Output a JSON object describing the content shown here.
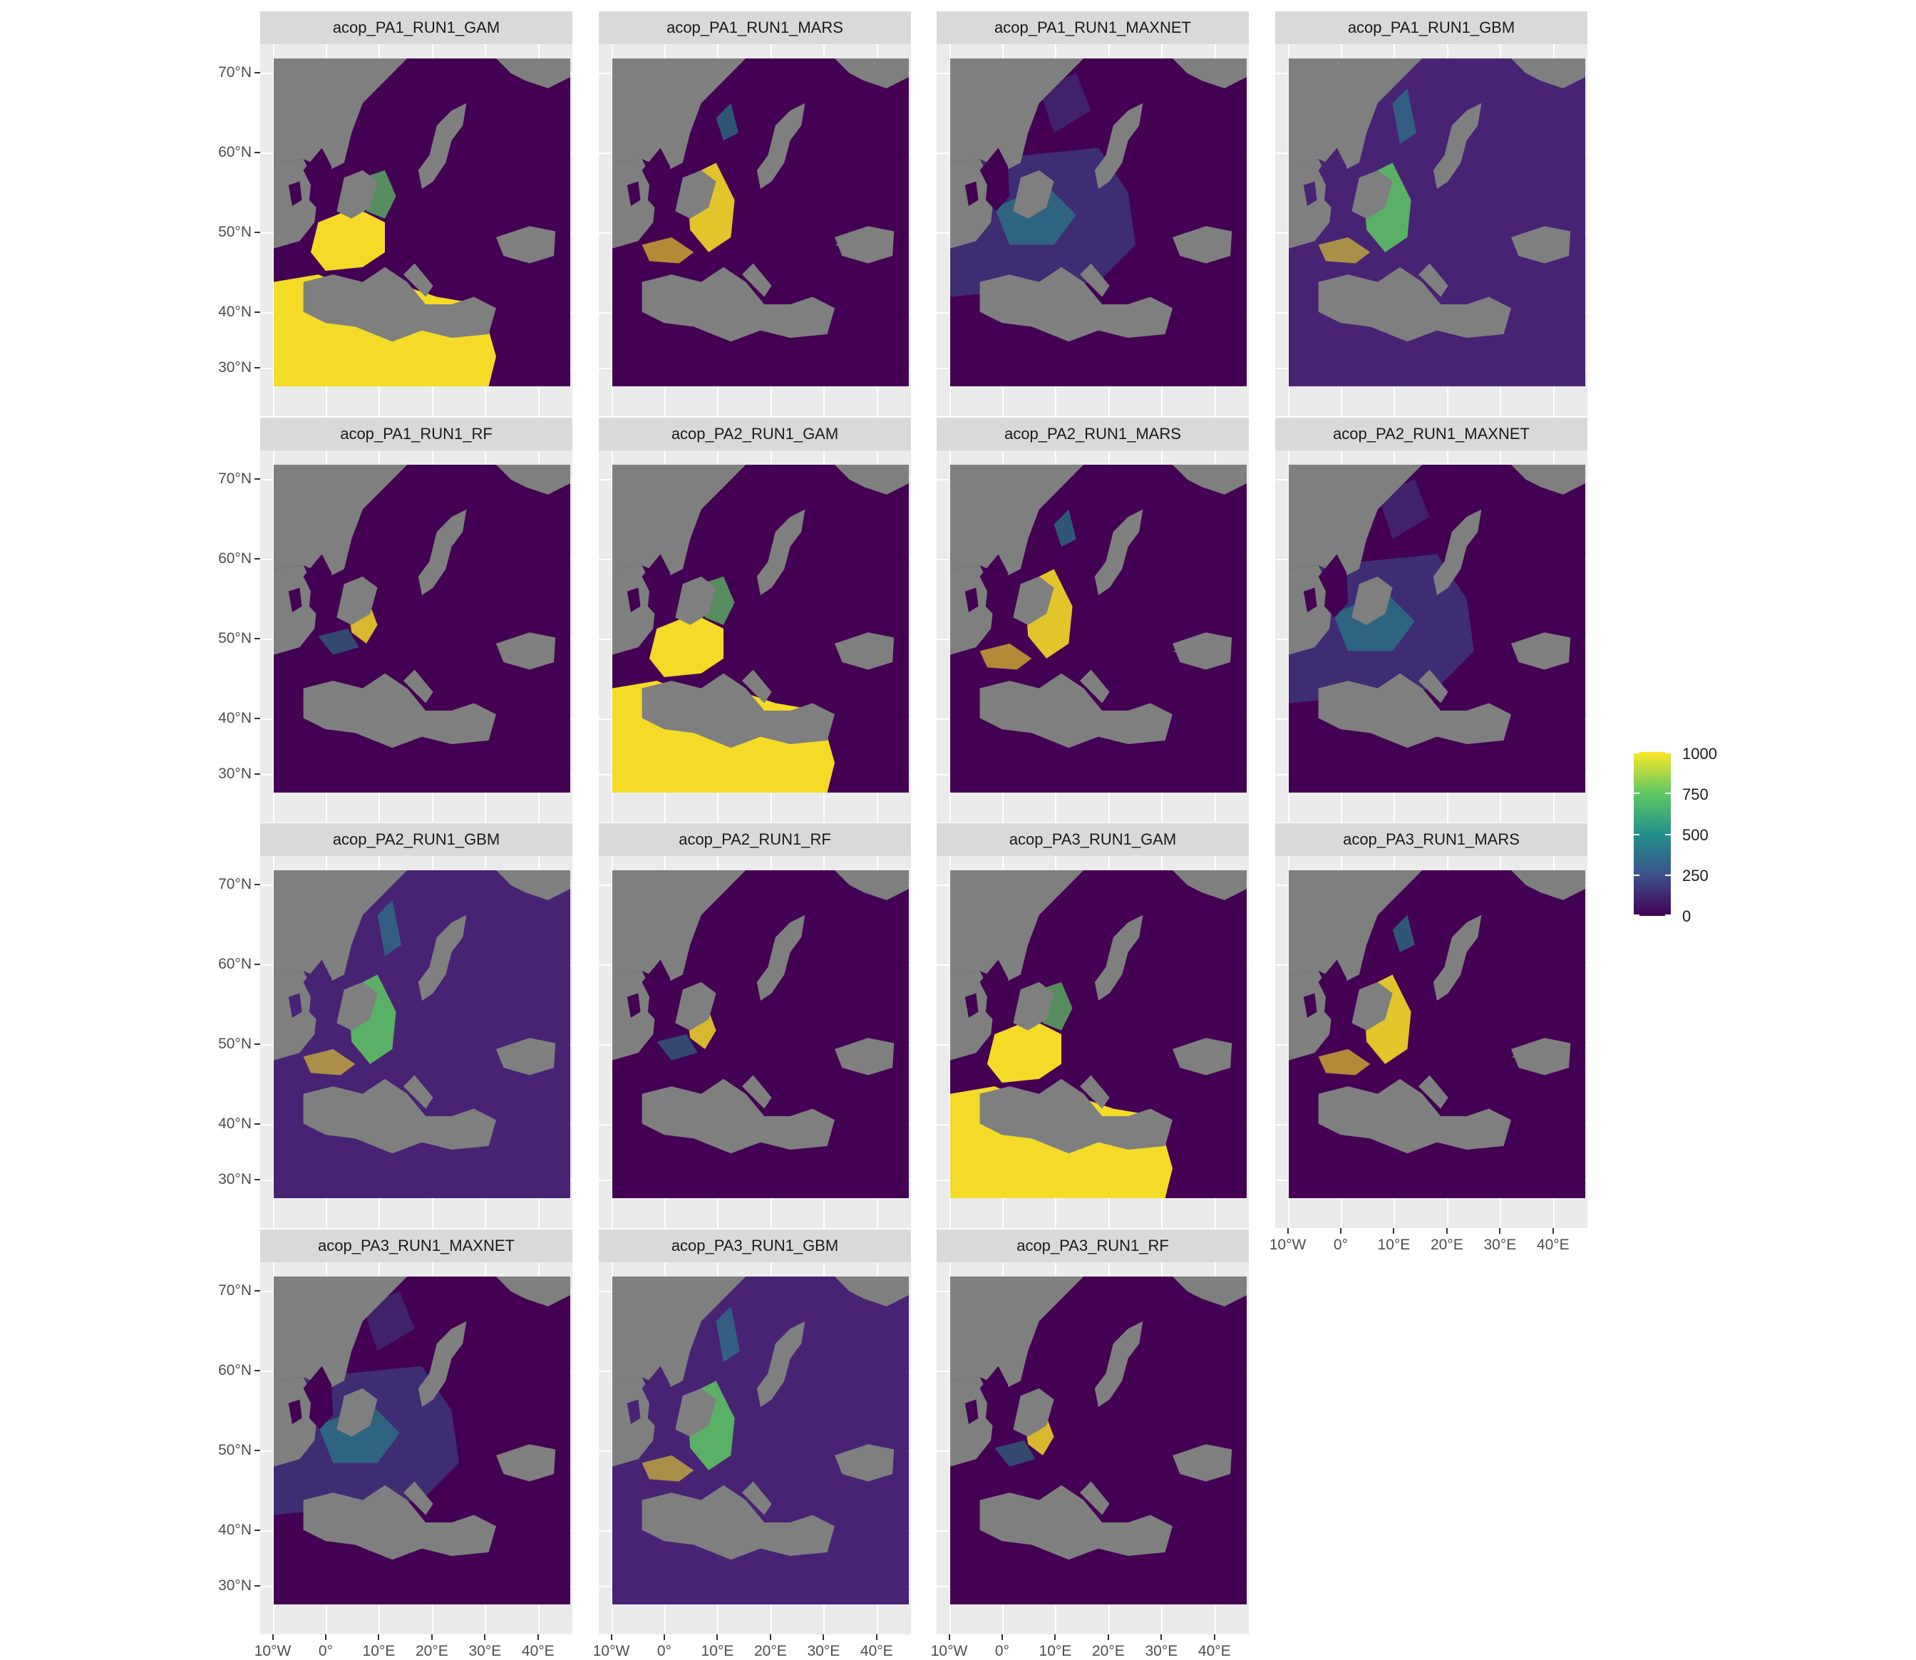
{
  "panels": [
    {
      "title": "acop_PA1_RUN1_GAM",
      "pattern": "gam"
    },
    {
      "title": "acop_PA1_RUN1_MARS",
      "pattern": "mars"
    },
    {
      "title": "acop_PA1_RUN1_MAXNET",
      "pattern": "maxnet"
    },
    {
      "title": "acop_PA1_RUN1_GBM",
      "pattern": "gbm"
    },
    {
      "title": "acop_PA1_RUN1_RF",
      "pattern": "rf"
    },
    {
      "title": "acop_PA2_RUN1_GAM",
      "pattern": "gam"
    },
    {
      "title": "acop_PA2_RUN1_MARS",
      "pattern": "mars"
    },
    {
      "title": "acop_PA2_RUN1_MAXNET",
      "pattern": "maxnet"
    },
    {
      "title": "acop_PA2_RUN1_GBM",
      "pattern": "gbm"
    },
    {
      "title": "acop_PA2_RUN1_RF",
      "pattern": "rf"
    },
    {
      "title": "acop_PA3_RUN1_GAM",
      "pattern": "gam"
    },
    {
      "title": "acop_PA3_RUN1_MARS",
      "pattern": "mars"
    },
    {
      "title": "acop_PA3_RUN1_MAXNET",
      "pattern": "maxnet"
    },
    {
      "title": "acop_PA3_RUN1_GBM",
      "pattern": "gbm"
    },
    {
      "title": "acop_PA3_RUN1_RF",
      "pattern": "rf"
    }
  ],
  "y_labels": [
    "70°N",
    "60°N",
    "50°N",
    "40°N",
    "30°N"
  ],
  "x_labels": [
    "10°W",
    "0°",
    "10°E",
    "20°E",
    "30°E",
    "40°E"
  ],
  "legend": {
    "labels": [
      "1000",
      "750",
      "500",
      "250",
      "0"
    ]
  },
  "colors": {
    "panel_bg": "#ebebeb",
    "strip_bg": "#d9d9d9",
    "sea": "#7f7f7f",
    "viridis": [
      "#440154",
      "#3b528b",
      "#21918c",
      "#5ec962",
      "#fde725"
    ]
  }
}
